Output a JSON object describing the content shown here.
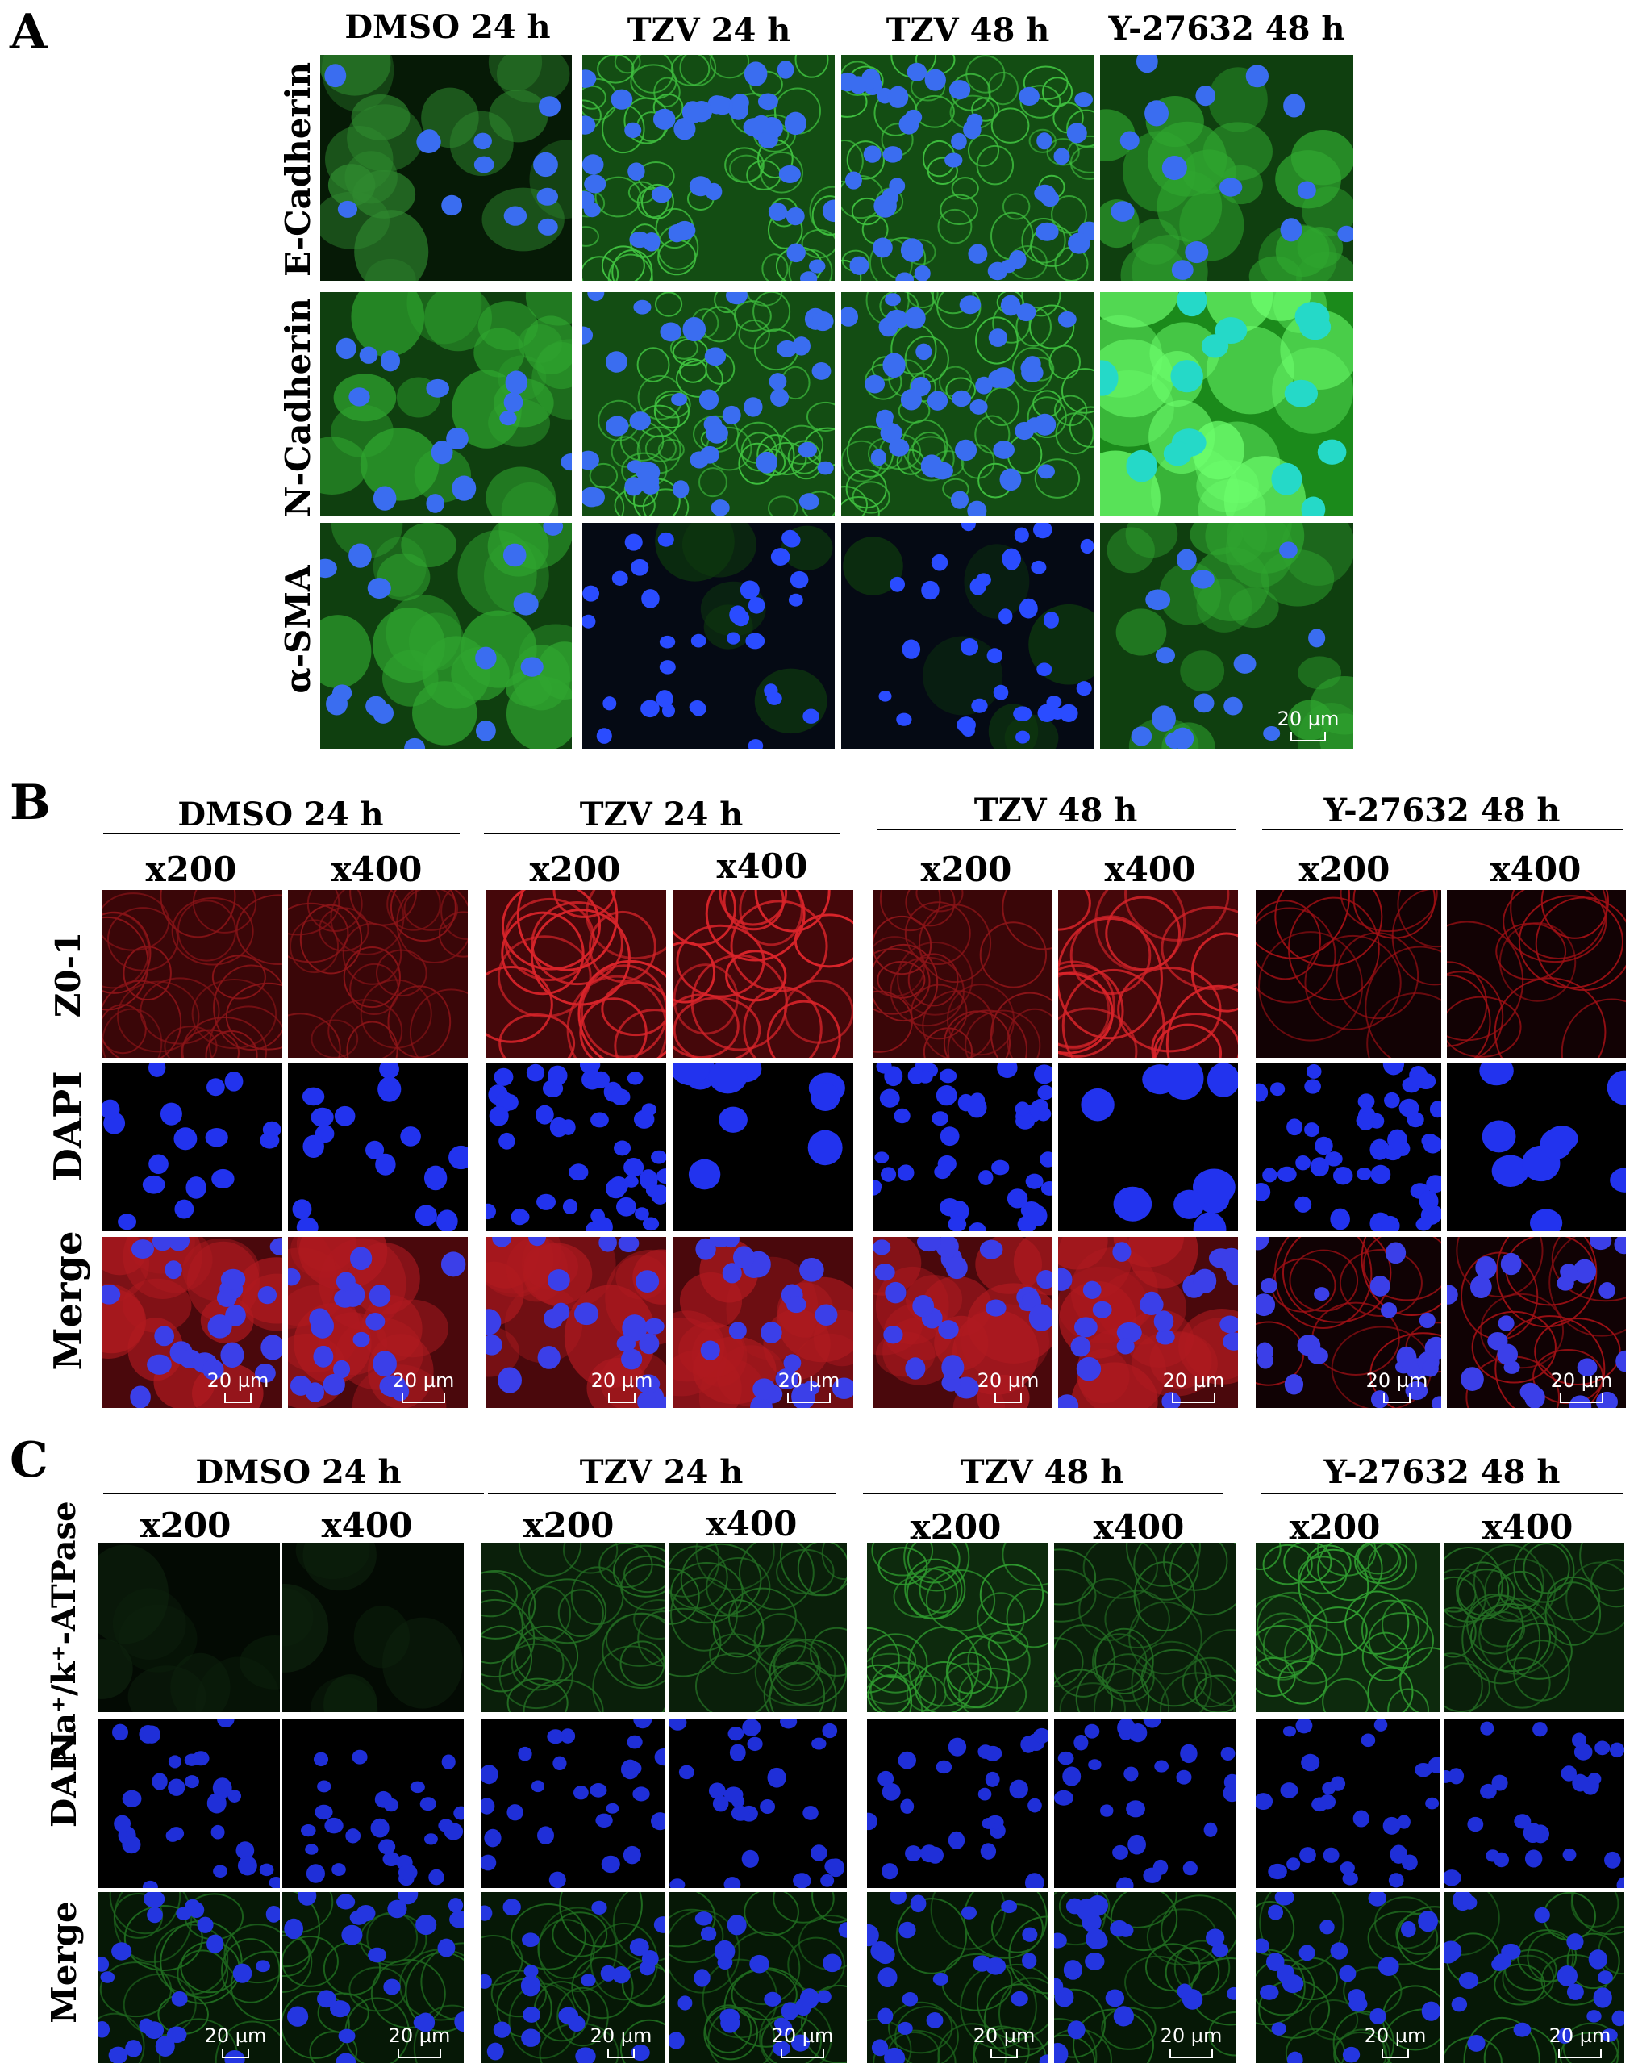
{
  "panel_a": {
    "letter": "A",
    "columns": [
      "DMSO 24 h",
      "TZV 24 h",
      "TZV 48 h",
      "Y-27632 48 h"
    ],
    "rows": [
      "E-Cadherin",
      "N-Cadherin",
      "α-SMA"
    ],
    "scale_bar": "20 µm"
  },
  "panel_b": {
    "letter": "B",
    "groups": [
      "DMSO  24 h",
      "TZV 24 h",
      "TZV 48 h",
      "Y-27632 48 h"
    ],
    "magnifications": [
      "x200",
      "x400"
    ],
    "rows": [
      "Z0-1",
      "DAPI",
      "Merge"
    ],
    "scale_bar": "20 µm"
  },
  "panel_c": {
    "letter": "C",
    "groups": [
      "DMSO 24 h",
      "TZV 24 h",
      "TZV 48 h",
      "Y-27632  48 h"
    ],
    "magnifications": [
      "x200",
      "x400"
    ],
    "rows": [
      "Na⁺/k⁺-ATPase",
      "DAPI",
      "Merge"
    ],
    "scale_bar": "20 µm"
  }
}
